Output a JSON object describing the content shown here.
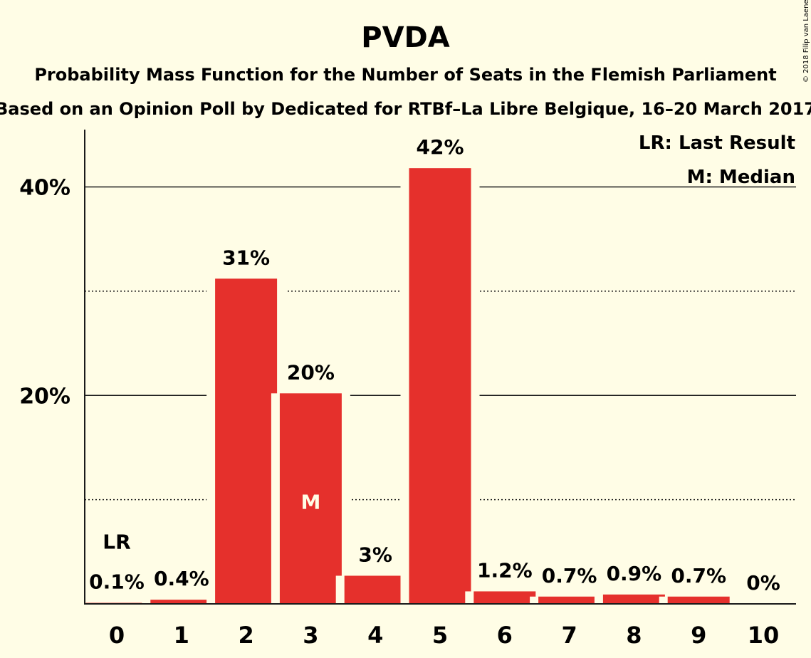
{
  "credit": "© 2018 Filip van Laenen",
  "chart_data": {
    "type": "bar",
    "title": "PVDA",
    "subtitle_1": "Probability Mass Function for the Number of Seats in the Flemish Parliament",
    "subtitle_2": "Based on an Opinion Poll by Dedicated for RTBf–La Libre Belgique, 16–20 March 2017",
    "categories": [
      "0",
      "1",
      "2",
      "3",
      "4",
      "5",
      "6",
      "7",
      "8",
      "9",
      "10"
    ],
    "values": [
      0.1,
      0.4,
      31.2,
      20.2,
      2.7,
      41.8,
      1.2,
      0.7,
      0.9,
      0.7,
      0
    ],
    "data_labels": [
      "0.1%",
      "0.4%",
      "31%",
      "20%",
      "3%",
      "42%",
      "1.2%",
      "0.7%",
      "0.9%",
      "0.7%",
      "0%"
    ],
    "ylim": [
      0,
      45.5
    ],
    "yticks": [
      {
        "value": 20,
        "label": "20%"
      },
      {
        "value": 40,
        "label": "40%"
      }
    ],
    "minor_gridlines": [
      10,
      30
    ],
    "bar_color": "#e5302c",
    "background": "#fffde6",
    "last_result": {
      "index": 0,
      "marker": "LR"
    },
    "median": {
      "index": 3,
      "marker": "M"
    },
    "legend": {
      "position": "top-right",
      "lines": [
        "LR: Last Result",
        "M: Median"
      ]
    }
  }
}
